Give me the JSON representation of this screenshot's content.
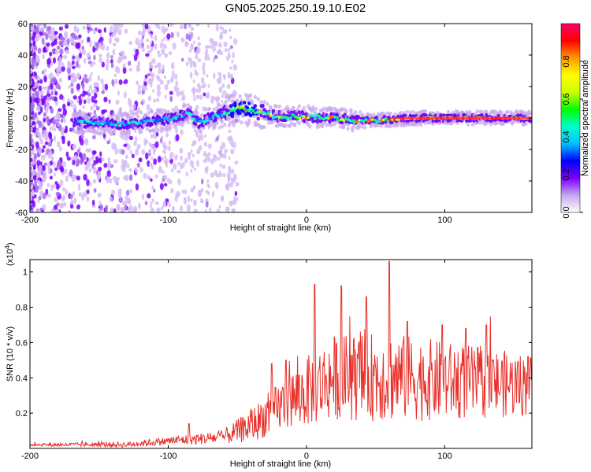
{
  "title": "GN05.2025.250.19.10.E02",
  "chart_data": [
    {
      "type": "heatmap",
      "xlabel": "Height of straight line (km)",
      "ylabel": "Frequency (Hz)",
      "xlim": [
        -200,
        163
      ],
      "ylim": [
        -60,
        60
      ],
      "xticks": [
        -200,
        -100,
        0,
        100
      ],
      "yticks": [
        -60,
        -40,
        -20,
        0,
        20,
        40,
        60
      ],
      "colorbar": {
        "label": "Normalized spectral amplitude",
        "range": [
          0,
          1
        ],
        "ticks": [
          "0.0",
          "0.2",
          "0.4",
          "0.6",
          "0.8"
        ],
        "colors": [
          "#ffffff",
          "#c7a6ee",
          "#7a00ff",
          "#0000ff",
          "#00bfff",
          "#00ffcc",
          "#00ff00",
          "#ccff00",
          "#ffff00",
          "#ff9900",
          "#ff0000",
          "#ff0066"
        ]
      },
      "ridge_center_hz": [
        {
          "x": -160,
          "y": -3
        },
        {
          "x": -140,
          "y": -4
        },
        {
          "x": -120,
          "y": -3
        },
        {
          "x": -105,
          "y": -1
        },
        {
          "x": -95,
          "y": 0
        },
        {
          "x": -85,
          "y": 3
        },
        {
          "x": -78,
          "y": -3
        },
        {
          "x": -70,
          "y": 0
        },
        {
          "x": -60,
          "y": 3
        },
        {
          "x": -50,
          "y": 6
        },
        {
          "x": -40,
          "y": 5
        },
        {
          "x": -30,
          "y": 3
        },
        {
          "x": -20,
          "y": 1
        },
        {
          "x": -10,
          "y": 1
        },
        {
          "x": 0,
          "y": 1
        },
        {
          "x": 20,
          "y": 0
        },
        {
          "x": 40,
          "y": -2
        },
        {
          "x": 60,
          "y": -1
        },
        {
          "x": 80,
          "y": 0
        },
        {
          "x": 100,
          "y": 0
        },
        {
          "x": 130,
          "y": 0
        },
        {
          "x": 163,
          "y": 0
        }
      ]
    },
    {
      "type": "line",
      "xlabel": "Height of straight line (km)",
      "ylabel": "SNR (10 * v/v)",
      "ylabel_scale": "(x10",
      "ylabel_scale_exp": "4",
      "ylabel_scale_close": ")",
      "xlim": [
        -200,
        163
      ],
      "ylim": [
        0,
        1.07
      ],
      "xticks": [
        -200,
        -100,
        0,
        100
      ],
      "yticks": [
        0.2,
        0.4,
        0.6,
        0.8,
        1
      ],
      "color": "#e8302a",
      "envelope": [
        {
          "x": -200,
          "base": 0.02,
          "amp": 0.01
        },
        {
          "x": -130,
          "base": 0.02,
          "amp": 0.02
        },
        {
          "x": -100,
          "base": 0.04,
          "amp": 0.03
        },
        {
          "x": -80,
          "base": 0.05,
          "amp": 0.04
        },
        {
          "x": -60,
          "base": 0.06,
          "amp": 0.05
        },
        {
          "x": -40,
          "base": 0.12,
          "amp": 0.12
        },
        {
          "x": -20,
          "base": 0.22,
          "amp": 0.18
        },
        {
          "x": 0,
          "base": 0.3,
          "amp": 0.25
        },
        {
          "x": 20,
          "base": 0.38,
          "amp": 0.3
        },
        {
          "x": 60,
          "base": 0.38,
          "amp": 0.32
        },
        {
          "x": 100,
          "base": 0.36,
          "amp": 0.28
        },
        {
          "x": 163,
          "base": 0.34,
          "amp": 0.22
        }
      ],
      "peaks": [
        {
          "x": -85,
          "y": 0.14
        },
        {
          "x": -25,
          "y": 0.48
        },
        {
          "x": -15,
          "y": 0.5
        },
        {
          "x": 6,
          "y": 0.93
        },
        {
          "x": 25,
          "y": 0.92
        },
        {
          "x": 43,
          "y": 0.86
        },
        {
          "x": 60,
          "y": 1.06
        },
        {
          "x": 73,
          "y": 0.72
        },
        {
          "x": 98,
          "y": 0.7
        },
        {
          "x": 115,
          "y": 0.68
        },
        {
          "x": 130,
          "y": 0.7
        },
        {
          "x": 160,
          "y": 0.52
        }
      ]
    }
  ]
}
